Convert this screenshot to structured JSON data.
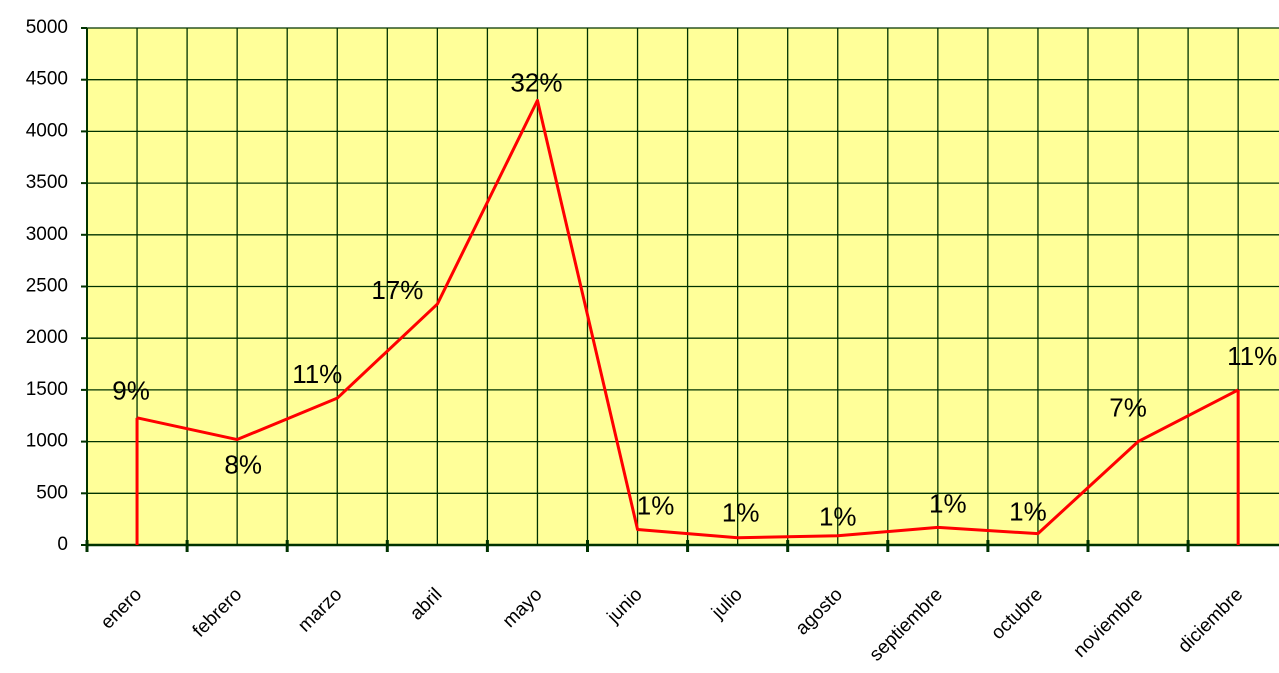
{
  "chart_data": {
    "type": "line",
    "categories": [
      "enero",
      "febrero",
      "marzo",
      "abril",
      "mayo",
      "junio",
      "julio",
      "agosto",
      "septiembre",
      "octubre",
      "noviembre",
      "diciembre"
    ],
    "series": [
      {
        "color": "#ff0000",
        "values": [
          1230,
          1020,
          1420,
          2330,
          4300,
          150,
          70,
          90,
          170,
          110,
          1000,
          1500
        ],
        "percent_labels": [
          "9%",
          "8%",
          "11%",
          "17%",
          "32%",
          "1%",
          "1%",
          "1%",
          "1%",
          "1%",
          "7%",
          "11%"
        ]
      }
    ],
    "ylim": [
      0,
      5000
    ],
    "yticks": [
      0,
      500,
      1000,
      1500,
      2000,
      2500,
      3000,
      3500,
      4000,
      4500,
      5000
    ],
    "grid": true,
    "plot_color": "#ffff99",
    "grid_color": "#003300"
  }
}
